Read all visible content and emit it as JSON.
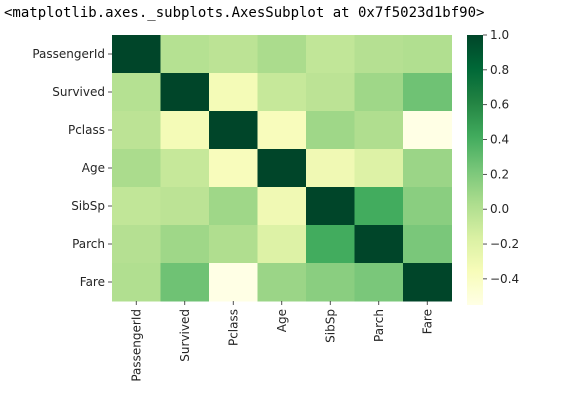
{
  "output_text": "<matplotlib.axes._subplots.AxesSubplot at 0x7f5023d1bf90>",
  "chart_data": {
    "type": "heatmap",
    "colormap": "YlGn",
    "vmin": -0.55,
    "vmax": 1.0,
    "rows": [
      "PassengerId",
      "Survived",
      "Pclass",
      "Age",
      "SibSp",
      "Parch",
      "Fare"
    ],
    "cols": [
      "PassengerId",
      "Survived",
      "Pclass",
      "Age",
      "SibSp",
      "Parch",
      "Fare"
    ],
    "values": [
      [
        1.0,
        -0.005,
        -0.035,
        0.037,
        -0.058,
        -0.002,
        0.013
      ],
      [
        -0.005,
        1.0,
        -0.338,
        -0.077,
        -0.035,
        0.082,
        0.257
      ],
      [
        -0.035,
        -0.338,
        1.0,
        -0.369,
        0.083,
        0.018,
        -0.549
      ],
      [
        0.037,
        -0.077,
        -0.369,
        1.0,
        -0.308,
        -0.189,
        0.096
      ],
      [
        -0.058,
        -0.035,
        0.083,
        -0.308,
        1.0,
        0.415,
        0.16
      ],
      [
        -0.002,
        0.082,
        0.018,
        -0.189,
        0.415,
        1.0,
        0.216
      ],
      [
        0.013,
        0.257,
        -0.549,
        0.096,
        0.16,
        0.216,
        1.0
      ]
    ],
    "colorbar_ticks": [
      "1.0",
      "0.8",
      "0.6",
      "0.4",
      "0.2",
      "0.0",
      "−0.2",
      "−0.4"
    ],
    "colorbar_tick_values": [
      1.0,
      0.8,
      0.6,
      0.4,
      0.2,
      0.0,
      -0.2,
      -0.4
    ]
  }
}
